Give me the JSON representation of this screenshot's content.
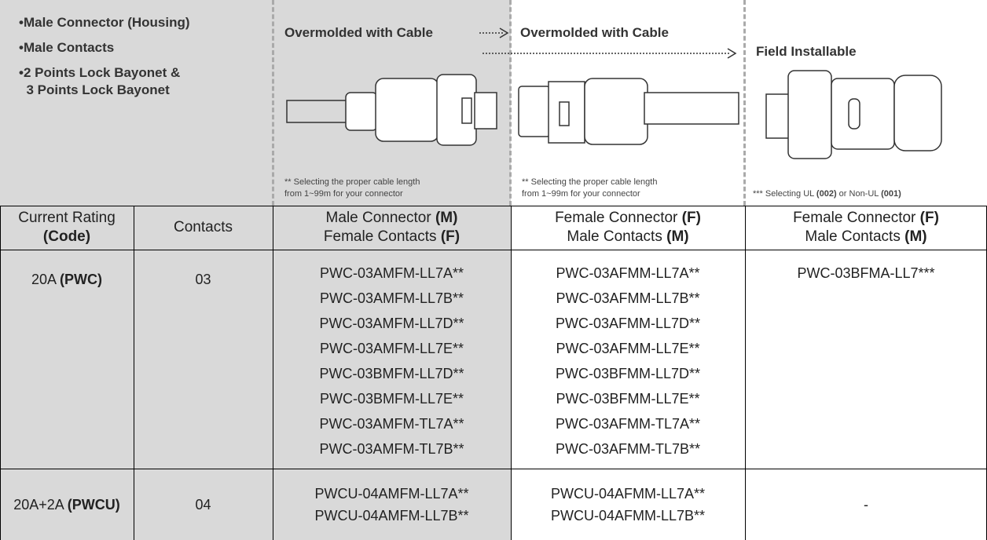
{
  "features": [
    [
      "Male Connector (Housing)"
    ],
    [
      "Male Contacts"
    ],
    [
      "2 Points Lock Bayonet &",
      "3 Points Lock Bayonet"
    ]
  ],
  "panels": [
    {
      "title": "Overmolded with Cable",
      "note": [
        [
          "** Selecting the proper cable length"
        ],
        [
          "from 1~99m for your connector"
        ]
      ]
    },
    {
      "title": "Overmolded with Cable",
      "note": [
        [
          "** Selecting the proper cable length"
        ],
        [
          "from 1~99m for your connector"
        ]
      ]
    },
    {
      "title": "Field Installable",
      "note": [
        [
          "*** Selecting UL ",
          {
            "bold": "(002)"
          },
          " or Non-UL ",
          {
            "bold": "(001)"
          }
        ]
      ]
    }
  ],
  "table": {
    "header": [
      [
        [
          "Current Rating"
        ],
        [
          {
            "bold": "(Code)"
          }
        ]
      ],
      [
        [
          "Contacts"
        ]
      ],
      [
        [
          "Male Connector ",
          {
            "bold": "(M)"
          }
        ],
        [
          "Female Contacts ",
          {
            "bold": "(F)"
          }
        ]
      ],
      [
        [
          "Female Connector ",
          {
            "bold": "(F)"
          }
        ],
        [
          "Male Contacts ",
          {
            "bold": "(M)"
          }
        ]
      ],
      [
        [
          "Female Connector ",
          {
            "bold": "(F)"
          }
        ],
        [
          "Male Contacts ",
          {
            "bold": "(M)"
          }
        ]
      ]
    ],
    "rows": [
      [
        [
          [
            "20A ",
            {
              "bold": "(PWC)"
            }
          ]
        ],
        [
          [
            "03"
          ]
        ],
        [
          [
            "PWC-03AMFM-LL7A**"
          ],
          [
            "PWC-03AMFM-LL7B**"
          ],
          [
            "PWC-03AMFM-LL7D**"
          ],
          [
            "PWC-03AMFM-LL7E**"
          ],
          [
            "PWC-03BMFM-LL7D**"
          ],
          [
            "PWC-03BMFM-LL7E**"
          ],
          [
            "PWC-03AMFM-TL7A**"
          ],
          [
            "PWC-03AMFM-TL7B**"
          ]
        ],
        [
          [
            "PWC-03AFMM-LL7A**"
          ],
          [
            "PWC-03AFMM-LL7B**"
          ],
          [
            "PWC-03AFMM-LL7D**"
          ],
          [
            "PWC-03AFMM-LL7E**"
          ],
          [
            "PWC-03BFMM-LL7D**"
          ],
          [
            "PWC-03BFMM-LL7E**"
          ],
          [
            "PWC-03AFMM-TL7A**"
          ],
          [
            "PWC-03AFMM-TL7B**"
          ]
        ],
        [
          [
            "PWC-03BFMA-LL7***"
          ]
        ]
      ],
      [
        [
          [
            "20A+2A ",
            {
              "bold": "(PWCU)"
            }
          ]
        ],
        [
          [
            "04"
          ]
        ],
        [
          [
            "PWCU-04AMFM-LL7A**"
          ],
          [
            "PWCU-04AMFM-LL7B**"
          ]
        ],
        [
          [
            "PWCU-04AFMM-LL7A**"
          ],
          [
            "PWCU-04AFMM-LL7B**"
          ]
        ],
        [
          [
            "-"
          ]
        ]
      ]
    ]
  }
}
